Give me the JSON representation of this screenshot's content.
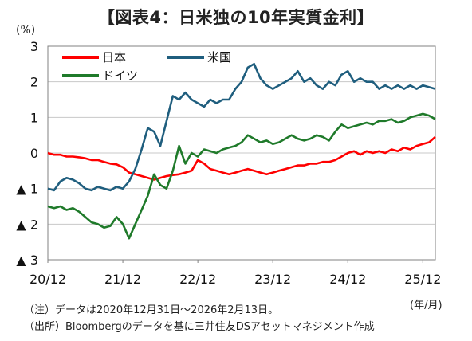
{
  "title": "【図表4：日米独の10年実質金利】",
  "y_unit": "(%)",
  "x_unit": "(年/月)",
  "notes": {
    "line1": "（注）データは2020年12月31日～2026年2月13日。",
    "line2": "（出所）Bloombergのデータを基に三井住友DSアセットマネジメント作成"
  },
  "colors": {
    "japan": "#ff0000",
    "us": "#1f5e7e",
    "germany": "#1f7a2a",
    "grid": "#c8c8c8",
    "frame": "#808080"
  },
  "chart_data": {
    "type": "line",
    "xlabel": "",
    "ylabel": "(%)",
    "ylim": [
      -3,
      3
    ],
    "xlim": [
      0,
      62
    ],
    "y_ticks": [
      {
        "value": 3,
        "label": "3"
      },
      {
        "value": 2,
        "label": "2"
      },
      {
        "value": 1,
        "label": "1"
      },
      {
        "value": 0,
        "label": "0"
      },
      {
        "value": -1,
        "label": "▲ 1"
      },
      {
        "value": -2,
        "label": "▲ 2"
      },
      {
        "value": -3,
        "label": "▲ 3"
      }
    ],
    "x_ticks": [
      {
        "value": 0,
        "label": "20/12"
      },
      {
        "value": 12,
        "label": "21/12"
      },
      {
        "value": 24,
        "label": "22/12"
      },
      {
        "value": 36,
        "label": "23/12"
      },
      {
        "value": 48,
        "label": "24/12"
      },
      {
        "value": 60,
        "label": "25/12"
      }
    ],
    "grid": true,
    "legend_position": "top-left",
    "series": [
      {
        "name": "日本",
        "color_key": "japan",
        "x": [
          0,
          1,
          2,
          3,
          4,
          5,
          6,
          7,
          8,
          9,
          10,
          11,
          12,
          13,
          14,
          15,
          16,
          17,
          18,
          19,
          20,
          21,
          22,
          23,
          24,
          25,
          26,
          27,
          28,
          29,
          30,
          31,
          32,
          33,
          34,
          35,
          36,
          37,
          38,
          39,
          40,
          41,
          42,
          43,
          44,
          45,
          46,
          47,
          48,
          49,
          50,
          51,
          52,
          53,
          54,
          55,
          56,
          57,
          58,
          59,
          60,
          61,
          62
        ],
        "values": [
          0.0,
          -0.05,
          -0.05,
          -0.1,
          -0.1,
          -0.12,
          -0.15,
          -0.2,
          -0.2,
          -0.25,
          -0.3,
          -0.32,
          -0.4,
          -0.55,
          -0.6,
          -0.65,
          -0.7,
          -0.75,
          -0.7,
          -0.65,
          -0.62,
          -0.6,
          -0.55,
          -0.5,
          -0.2,
          -0.3,
          -0.45,
          -0.5,
          -0.55,
          -0.6,
          -0.55,
          -0.5,
          -0.45,
          -0.5,
          -0.55,
          -0.6,
          -0.55,
          -0.5,
          -0.45,
          -0.4,
          -0.35,
          -0.35,
          -0.3,
          -0.3,
          -0.25,
          -0.25,
          -0.2,
          -0.1,
          0.0,
          0.05,
          -0.05,
          0.05,
          0.0,
          0.05,
          0.0,
          0.1,
          0.05,
          0.15,
          0.1,
          0.2,
          0.25,
          0.3,
          0.45
        ]
      },
      {
        "name": "米国",
        "color_key": "us",
        "x": [
          0,
          1,
          2,
          3,
          4,
          5,
          6,
          7,
          8,
          9,
          10,
          11,
          12,
          13,
          14,
          15,
          16,
          17,
          18,
          19,
          20,
          21,
          22,
          23,
          24,
          25,
          26,
          27,
          28,
          29,
          30,
          31,
          32,
          33,
          34,
          35,
          36,
          37,
          38,
          39,
          40,
          41,
          42,
          43,
          44,
          45,
          46,
          47,
          48,
          49,
          50,
          51,
          52,
          53,
          54,
          55,
          56,
          57,
          58,
          59,
          60,
          61,
          62
        ],
        "values": [
          -1.0,
          -1.05,
          -0.8,
          -0.7,
          -0.75,
          -0.85,
          -1.0,
          -1.05,
          -0.95,
          -1.0,
          -1.05,
          -0.95,
          -1.0,
          -0.8,
          -0.45,
          0.1,
          0.7,
          0.6,
          0.2,
          0.9,
          1.6,
          1.5,
          1.7,
          1.5,
          1.4,
          1.3,
          1.5,
          1.4,
          1.5,
          1.5,
          1.8,
          2.0,
          2.4,
          2.5,
          2.1,
          1.9,
          1.8,
          1.9,
          2.0,
          2.1,
          2.3,
          2.0,
          2.1,
          1.9,
          1.8,
          2.0,
          1.9,
          2.2,
          2.3,
          2.0,
          2.1,
          2.0,
          2.0,
          1.8,
          1.9,
          1.8,
          1.9,
          1.8,
          1.9,
          1.8,
          1.9,
          1.85,
          1.8
        ]
      },
      {
        "name": "ドイツ",
        "color_key": "germany",
        "x": [
          0,
          1,
          2,
          3,
          4,
          5,
          6,
          7,
          8,
          9,
          10,
          11,
          12,
          13,
          14,
          15,
          16,
          17,
          18,
          19,
          20,
          21,
          22,
          23,
          24,
          25,
          26,
          27,
          28,
          29,
          30,
          31,
          32,
          33,
          34,
          35,
          36,
          37,
          38,
          39,
          40,
          41,
          42,
          43,
          44,
          45,
          46,
          47,
          48,
          49,
          50,
          51,
          52,
          53,
          54,
          55,
          56,
          57,
          58,
          59,
          60,
          61,
          62
        ],
        "values": [
          -1.5,
          -1.55,
          -1.5,
          -1.6,
          -1.55,
          -1.65,
          -1.8,
          -1.95,
          -2.0,
          -2.1,
          -2.05,
          -1.8,
          -2.0,
          -2.4,
          -2.0,
          -1.6,
          -1.2,
          -0.6,
          -0.9,
          -1.0,
          -0.5,
          0.2,
          -0.3,
          0.0,
          -0.1,
          0.1,
          0.05,
          0.0,
          0.1,
          0.15,
          0.2,
          0.3,
          0.5,
          0.4,
          0.3,
          0.35,
          0.25,
          0.3,
          0.4,
          0.5,
          0.4,
          0.35,
          0.4,
          0.5,
          0.45,
          0.35,
          0.6,
          0.8,
          0.7,
          0.75,
          0.8,
          0.85,
          0.8,
          0.9,
          0.9,
          0.95,
          0.85,
          0.9,
          1.0,
          1.05,
          1.1,
          1.05,
          0.95
        ]
      }
    ]
  }
}
